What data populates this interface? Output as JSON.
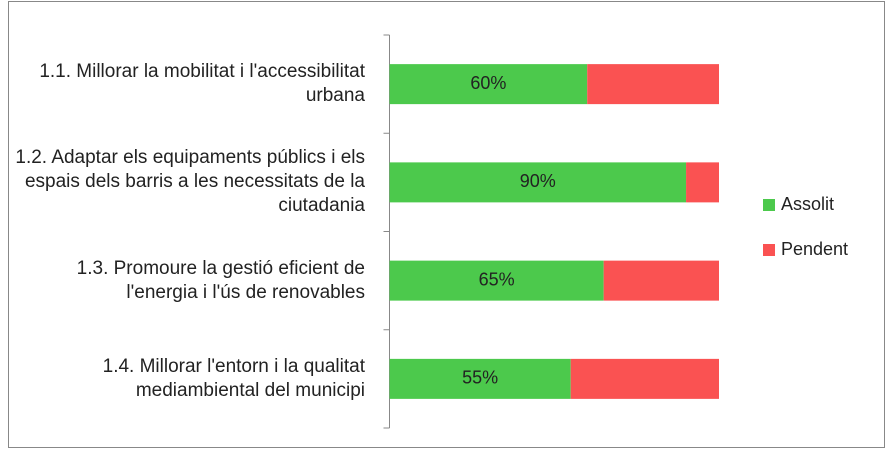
{
  "chart_data": {
    "type": "bar",
    "orientation": "horizontal",
    "stacked": true,
    "categories": [
      "1.1. Millorar la mobilitat i l'accessibilitat urbana",
      "1.2. Adaptar els equipaments públics i els espais dels barris a les necessitats de la ciutadania",
      "1.3. Promoure la gestió eficient de l'energia i l'ús de renovables",
      "1.4. Millorar l'entorn i la qualitat mediambiental del municipi"
    ],
    "series": [
      {
        "name": "Assolit",
        "color": "#4cc94c",
        "values": [
          60,
          90,
          65,
          55
        ],
        "value_labels": [
          "60%",
          "90%",
          "65%",
          "55%"
        ]
      },
      {
        "name": "Pendent",
        "color": "#fa5252",
        "values": [
          40,
          10,
          35,
          45
        ]
      }
    ],
    "xlim": [
      0,
      100
    ],
    "legend": "right"
  }
}
